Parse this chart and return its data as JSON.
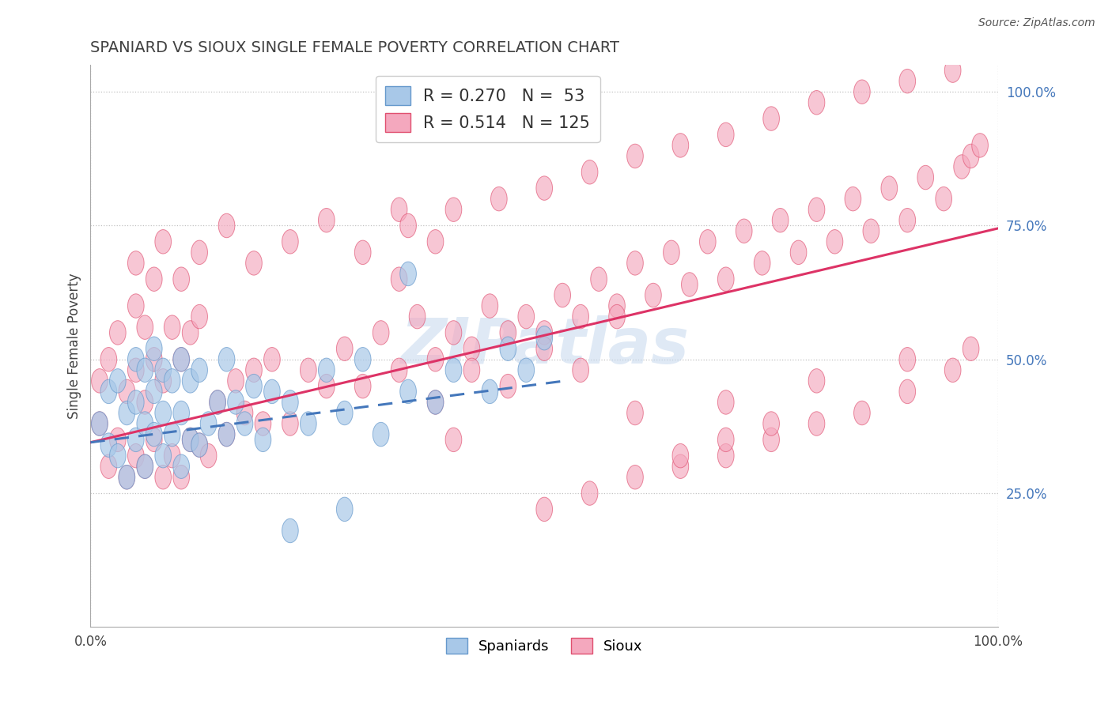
{
  "title": "SPANIARD VS SIOUX SINGLE FEMALE POVERTY CORRELATION CHART",
  "source_text": "Source: ZipAtlas.com",
  "ylabel": "Single Female Poverty",
  "watermark": "ZIPatlas",
  "xlim": [
    0,
    1
  ],
  "ylim": [
    0,
    1.05
  ],
  "xtick_positions": [
    0.0,
    1.0
  ],
  "xtick_labels": [
    "0.0%",
    "100.0%"
  ],
  "ytick_positions": [
    0.25,
    0.5,
    0.75,
    1.0
  ],
  "ytick_labels": [
    "25.0%",
    "50.0%",
    "75.0%",
    "100.0%"
  ],
  "legend_line1": "R = 0.270   N =  53",
  "legend_line2": "R = 0.514   N = 125",
  "blue_face": "#A8C8E8",
  "blue_edge": "#6699CC",
  "pink_face": "#F4A8BE",
  "pink_edge": "#E05070",
  "blue_line_color": "#4477BB",
  "pink_line_color": "#DD3366",
  "title_color": "#404040",
  "ytick_color": "#4477BB",
  "blue_r": 0.27,
  "pink_r": 0.514,
  "blue_intercept": 0.345,
  "blue_slope": 0.22,
  "pink_intercept": 0.345,
  "pink_slope": 0.4,
  "spaniards_x": [
    0.01,
    0.02,
    0.02,
    0.03,
    0.03,
    0.04,
    0.04,
    0.05,
    0.05,
    0.05,
    0.06,
    0.06,
    0.06,
    0.07,
    0.07,
    0.07,
    0.08,
    0.08,
    0.08,
    0.09,
    0.09,
    0.1,
    0.1,
    0.1,
    0.11,
    0.11,
    0.12,
    0.12,
    0.13,
    0.14,
    0.15,
    0.15,
    0.16,
    0.17,
    0.18,
    0.19,
    0.2,
    0.22,
    0.24,
    0.26,
    0.28,
    0.3,
    0.32,
    0.35,
    0.38,
    0.4,
    0.44,
    0.46,
    0.48,
    0.5,
    0.22,
    0.28,
    0.35
  ],
  "spaniards_y": [
    0.38,
    0.34,
    0.44,
    0.32,
    0.46,
    0.28,
    0.4,
    0.35,
    0.42,
    0.5,
    0.3,
    0.38,
    0.48,
    0.36,
    0.44,
    0.52,
    0.32,
    0.4,
    0.48,
    0.36,
    0.46,
    0.3,
    0.4,
    0.5,
    0.35,
    0.46,
    0.34,
    0.48,
    0.38,
    0.42,
    0.36,
    0.5,
    0.42,
    0.38,
    0.45,
    0.35,
    0.44,
    0.42,
    0.38,
    0.48,
    0.4,
    0.5,
    0.36,
    0.44,
    0.42,
    0.48,
    0.44,
    0.52,
    0.48,
    0.54,
    0.18,
    0.22,
    0.66
  ],
  "sioux_x": [
    0.01,
    0.01,
    0.02,
    0.02,
    0.03,
    0.03,
    0.04,
    0.04,
    0.05,
    0.05,
    0.05,
    0.06,
    0.06,
    0.06,
    0.07,
    0.07,
    0.07,
    0.08,
    0.08,
    0.09,
    0.09,
    0.1,
    0.1,
    0.11,
    0.11,
    0.12,
    0.12,
    0.13,
    0.14,
    0.15,
    0.16,
    0.17,
    0.18,
    0.19,
    0.2,
    0.22,
    0.24,
    0.26,
    0.28,
    0.3,
    0.32,
    0.34,
    0.36,
    0.38,
    0.4,
    0.42,
    0.44,
    0.46,
    0.48,
    0.5,
    0.52,
    0.54,
    0.56,
    0.58,
    0.6,
    0.62,
    0.64,
    0.66,
    0.68,
    0.7,
    0.72,
    0.74,
    0.76,
    0.78,
    0.8,
    0.82,
    0.84,
    0.86,
    0.88,
    0.9,
    0.92,
    0.94,
    0.96,
    0.97,
    0.98,
    0.38,
    0.42,
    0.46,
    0.5,
    0.54,
    0.58,
    0.34,
    0.38,
    0.34,
    0.05,
    0.08,
    0.1,
    0.12,
    0.15,
    0.18,
    0.22,
    0.26,
    0.3,
    0.35,
    0.4,
    0.45,
    0.5,
    0.55,
    0.6,
    0.65,
    0.7,
    0.75,
    0.8,
    0.85,
    0.9,
    0.95,
    0.4,
    0.6,
    0.7,
    0.8,
    0.9,
    0.65,
    0.7,
    0.75,
    0.8,
    0.85,
    0.9,
    0.95,
    0.97,
    0.5,
    0.55,
    0.6,
    0.65,
    0.7,
    0.75
  ],
  "sioux_y": [
    0.38,
    0.46,
    0.3,
    0.5,
    0.35,
    0.55,
    0.28,
    0.44,
    0.32,
    0.48,
    0.6,
    0.3,
    0.42,
    0.56,
    0.35,
    0.5,
    0.65,
    0.28,
    0.46,
    0.32,
    0.56,
    0.28,
    0.5,
    0.35,
    0.55,
    0.34,
    0.58,
    0.32,
    0.42,
    0.36,
    0.46,
    0.4,
    0.48,
    0.38,
    0.5,
    0.38,
    0.48,
    0.45,
    0.52,
    0.45,
    0.55,
    0.48,
    0.58,
    0.5,
    0.55,
    0.52,
    0.6,
    0.55,
    0.58,
    0.55,
    0.62,
    0.58,
    0.65,
    0.6,
    0.68,
    0.62,
    0.7,
    0.64,
    0.72,
    0.65,
    0.74,
    0.68,
    0.76,
    0.7,
    0.78,
    0.72,
    0.8,
    0.74,
    0.82,
    0.76,
    0.84,
    0.8,
    0.86,
    0.88,
    0.9,
    0.42,
    0.48,
    0.45,
    0.52,
    0.48,
    0.58,
    0.65,
    0.72,
    0.78,
    0.68,
    0.72,
    0.65,
    0.7,
    0.75,
    0.68,
    0.72,
    0.76,
    0.7,
    0.75,
    0.78,
    0.8,
    0.82,
    0.85,
    0.88,
    0.9,
    0.92,
    0.95,
    0.98,
    1.0,
    1.02,
    1.04,
    0.35,
    0.4,
    0.42,
    0.46,
    0.5,
    0.3,
    0.32,
    0.35,
    0.38,
    0.4,
    0.44,
    0.48,
    0.52,
    0.22,
    0.25,
    0.28,
    0.32,
    0.35,
    0.38
  ]
}
